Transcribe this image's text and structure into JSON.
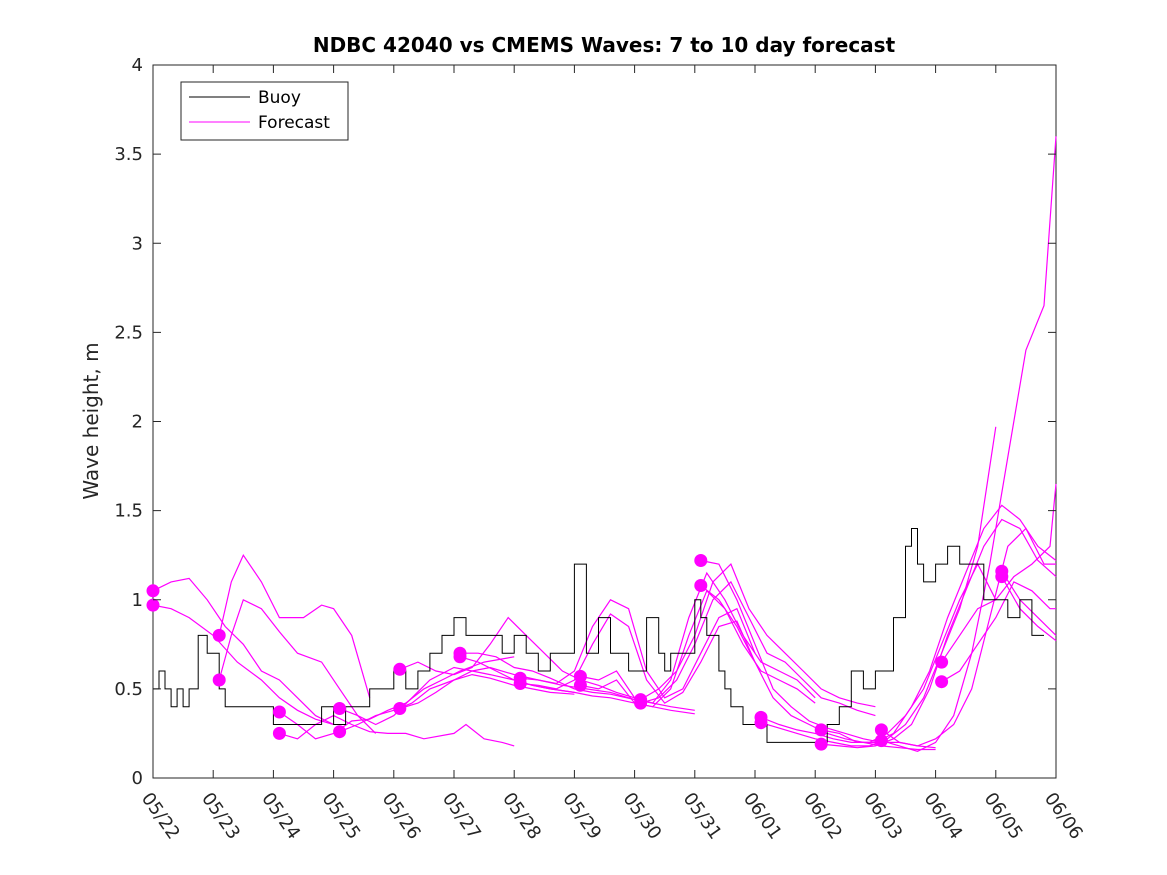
{
  "chart_data": {
    "type": "line",
    "title": "NDBC 42040 vs CMEMS Waves: 7 to 10 day forecast",
    "xlabel": "",
    "ylabel": "Wave height, m",
    "xlim": [
      "05/22",
      "06/06"
    ],
    "ylim": [
      0,
      4
    ],
    "y_ticks": [
      "0",
      "0.5",
      "1",
      "1.5",
      "2",
      "2.5",
      "3",
      "3.5",
      "4"
    ],
    "x_ticks": [
      "05/22",
      "05/23",
      "05/24",
      "05/25",
      "05/26",
      "05/27",
      "05/28",
      "05/29",
      "05/30",
      "05/31",
      "06/01",
      "06/02",
      "06/03",
      "06/04",
      "06/05",
      "06/06"
    ],
    "legend": {
      "position": "top-left",
      "entries": [
        "Buoy",
        "Forecast"
      ]
    },
    "colors": {
      "buoy": "#000000",
      "forecast": "#ff00ff"
    },
    "grid": false,
    "buoy": {
      "name": "Buoy",
      "x_days": [
        0,
        0.1,
        0.2,
        0.3,
        0.4,
        0.5,
        0.6,
        0.75,
        0.9,
        1.0,
        1.1,
        1.2,
        1.3,
        1.5,
        1.8,
        2.0,
        2.2,
        2.4,
        2.6,
        2.8,
        3.0,
        3.2,
        3.4,
        3.6,
        3.8,
        4.0,
        4.2,
        4.4,
        4.6,
        4.8,
        5.0,
        5.2,
        5.4,
        5.6,
        5.8,
        6.0,
        6.2,
        6.4,
        6.6,
        6.8,
        7.0,
        7.2,
        7.4,
        7.6,
        7.7,
        7.8,
        7.9,
        8.0,
        8.2,
        8.4,
        8.5,
        8.6,
        8.8,
        9.0,
        9.1,
        9.2,
        9.4,
        9.5,
        9.6,
        9.8,
        10.0,
        10.2,
        10.4,
        10.6,
        10.8,
        11.0,
        11.2,
        11.4,
        11.6,
        11.8,
        12.0,
        12.1,
        12.3,
        12.5,
        12.6,
        12.7,
        12.8,
        13.0,
        13.2,
        13.4,
        13.6,
        13.8,
        14.0,
        14.2,
        14.4,
        14.6,
        14.8
      ],
      "y": [
        0.5,
        0.6,
        0.5,
        0.4,
        0.5,
        0.4,
        0.5,
        0.8,
        0.7,
        0.7,
        0.5,
        0.4,
        0.4,
        0.4,
        0.4,
        0.3,
        0.3,
        0.3,
        0.3,
        0.4,
        0.3,
        0.4,
        0.4,
        0.5,
        0.5,
        0.6,
        0.5,
        0.6,
        0.7,
        0.8,
        0.9,
        0.8,
        0.8,
        0.8,
        0.7,
        0.8,
        0.7,
        0.6,
        0.7,
        0.7,
        1.2,
        0.7,
        0.9,
        0.7,
        0.7,
        0.7,
        0.6,
        0.6,
        0.9,
        0.7,
        0.6,
        0.7,
        0.7,
        1.0,
        0.9,
        0.8,
        0.6,
        0.5,
        0.4,
        0.3,
        0.3,
        0.2,
        0.2,
        0.2,
        0.2,
        0.2,
        0.3,
        0.4,
        0.6,
        0.5,
        0.6,
        0.6,
        0.9,
        1.3,
        1.4,
        1.2,
        1.1,
        1.2,
        1.3,
        1.2,
        1.2,
        1.0,
        1.0,
        0.9,
        1.0,
        0.8,
        0.8
      ]
    },
    "series": [
      {
        "name": "Forecast",
        "x_days": [
          0,
          0.3,
          0.6,
          0.9,
          1.2,
          1.5,
          1.8,
          2.1,
          2.4,
          2.7,
          3.0
        ],
        "y": [
          1.05,
          1.1,
          1.12,
          1.0,
          0.85,
          0.75,
          0.6,
          0.55,
          0.45,
          0.35,
          0.3
        ]
      },
      {
        "name": "Forecast",
        "x_days": [
          0,
          0.3,
          0.6,
          1.0,
          1.4,
          1.8,
          2.1,
          2.4,
          2.7,
          3.0
        ],
        "y": [
          0.97,
          0.95,
          0.9,
          0.8,
          0.65,
          0.55,
          0.45,
          0.38,
          0.33,
          0.3
        ]
      },
      {
        "name": "Forecast",
        "x_days": [
          1.1,
          1.3,
          1.5,
          1.8,
          2.1,
          2.5,
          2.8,
          3.0,
          3.3,
          3.6
        ],
        "y": [
          0.8,
          1.1,
          1.25,
          1.1,
          0.9,
          0.9,
          0.97,
          0.95,
          0.8,
          0.45
        ]
      },
      {
        "name": "Forecast",
        "x_days": [
          1.1,
          1.3,
          1.5,
          1.8,
          2.1,
          2.4,
          2.8,
          3.1,
          3.4,
          3.7
        ],
        "y": [
          0.55,
          0.8,
          1.0,
          0.95,
          0.82,
          0.7,
          0.65,
          0.5,
          0.35,
          0.25
        ]
      },
      {
        "name": "Forecast",
        "x_days": [
          2.1,
          2.4,
          2.7,
          3.0,
          3.3,
          3.6,
          3.9,
          4.2,
          4.5,
          4.8,
          5.1,
          5.5,
          6.0
        ],
        "y": [
          0.37,
          0.3,
          0.22,
          0.25,
          0.32,
          0.33,
          0.38,
          0.42,
          0.5,
          0.55,
          0.6,
          0.65,
          0.68
        ]
      },
      {
        "name": "Forecast",
        "x_days": [
          2.1,
          2.4,
          2.7,
          3.0,
          3.3,
          3.6,
          3.9,
          4.2,
          4.5,
          5.0,
          5.2,
          5.5,
          5.8,
          6.0
        ],
        "y": [
          0.25,
          0.22,
          0.3,
          0.35,
          0.3,
          0.26,
          0.25,
          0.25,
          0.22,
          0.25,
          0.3,
          0.22,
          0.2,
          0.18
        ]
      },
      {
        "name": "Forecast",
        "x_days": [
          3.1,
          3.4,
          3.7,
          4.0,
          4.3,
          4.6,
          5.0,
          5.3,
          5.6,
          6.0,
          6.3,
          6.6,
          7.0
        ],
        "y": [
          0.39,
          0.35,
          0.3,
          0.35,
          0.45,
          0.55,
          0.62,
          0.6,
          0.58,
          0.55,
          0.52,
          0.5,
          0.48
        ]
      },
      {
        "name": "Forecast",
        "x_days": [
          3.1,
          3.4,
          3.7,
          4.0,
          4.3,
          4.6,
          5.0,
          5.3,
          5.6,
          6.0,
          6.3,
          6.6,
          7.0
        ],
        "y": [
          0.26,
          0.3,
          0.35,
          0.38,
          0.42,
          0.5,
          0.55,
          0.58,
          0.56,
          0.52,
          0.5,
          0.48,
          0.47
        ]
      },
      {
        "name": "Forecast",
        "x_days": [
          4.1,
          4.4,
          4.7,
          5.0,
          5.3,
          5.6,
          5.9,
          6.2,
          6.5,
          6.8,
          7.1,
          7.4,
          7.7,
          8.0
        ],
        "y": [
          0.61,
          0.65,
          0.6,
          0.58,
          0.62,
          0.75,
          0.9,
          0.8,
          0.7,
          0.6,
          0.55,
          0.52,
          0.48,
          0.45
        ]
      },
      {
        "name": "Forecast",
        "x_days": [
          4.1,
          4.4,
          4.7,
          5.0,
          5.3,
          5.6,
          6.0,
          6.4,
          6.8,
          7.2,
          7.6,
          8.0
        ],
        "y": [
          0.39,
          0.42,
          0.48,
          0.55,
          0.6,
          0.62,
          0.58,
          0.55,
          0.52,
          0.5,
          0.48,
          0.44
        ]
      },
      {
        "name": "Forecast",
        "x_days": [
          5.1,
          5.4,
          5.7,
          6.0,
          6.3,
          6.6,
          7.0,
          7.3,
          7.6,
          8.0,
          8.3,
          8.6,
          9.0
        ],
        "y": [
          0.7,
          0.7,
          0.68,
          0.62,
          0.6,
          0.56,
          0.5,
          0.48,
          0.47,
          0.44,
          0.42,
          0.4,
          0.38
        ]
      },
      {
        "name": "Forecast",
        "x_days": [
          5.1,
          5.4,
          5.7,
          6.0,
          6.3,
          6.6,
          7.0,
          7.3,
          7.6,
          8.0,
          8.3,
          8.6,
          9.0
        ],
        "y": [
          0.68,
          0.65,
          0.6,
          0.55,
          0.52,
          0.5,
          0.48,
          0.46,
          0.45,
          0.42,
          0.4,
          0.38,
          0.36
        ]
      },
      {
        "name": "Forecast",
        "x_days": [
          6.1,
          6.4,
          6.7,
          7.0,
          7.3,
          7.6,
          7.9,
          8.2,
          8.5,
          8.8,
          9.1,
          9.4,
          9.7,
          10.0
        ],
        "y": [
          0.56,
          0.55,
          0.53,
          0.6,
          0.85,
          1.0,
          0.95,
          0.6,
          0.45,
          0.5,
          0.7,
          0.9,
          0.95,
          0.7
        ]
      },
      {
        "name": "Forecast",
        "x_days": [
          6.1,
          6.4,
          6.7,
          7.0,
          7.3,
          7.6,
          7.9,
          8.2,
          8.5,
          8.8,
          9.1,
          9.4,
          9.7,
          10.0
        ],
        "y": [
          0.53,
          0.52,
          0.5,
          0.55,
          0.75,
          0.92,
          0.85,
          0.55,
          0.42,
          0.48,
          0.65,
          0.85,
          0.88,
          0.65
        ]
      },
      {
        "name": "Forecast",
        "x_days": [
          7.1,
          7.4,
          7.7,
          8.0,
          8.3,
          8.6,
          8.9,
          9.2,
          9.5,
          9.8,
          10.1,
          10.4,
          10.7,
          11.0
        ],
        "y": [
          0.57,
          0.55,
          0.6,
          0.45,
          0.42,
          0.55,
          0.9,
          1.15,
          1.0,
          0.8,
          0.65,
          0.6,
          0.55,
          0.45
        ]
      },
      {
        "name": "Forecast",
        "x_days": [
          7.1,
          7.4,
          7.7,
          8.0,
          8.3,
          8.6,
          8.9,
          9.2,
          9.5,
          9.8,
          10.1,
          10.4,
          10.7,
          11.0
        ],
        "y": [
          0.52,
          0.5,
          0.55,
          0.42,
          0.4,
          0.5,
          0.8,
          1.05,
          0.95,
          0.75,
          0.6,
          0.55,
          0.5,
          0.42
        ]
      },
      {
        "name": "Forecast",
        "x_days": [
          8.1,
          8.4,
          8.7,
          9.0,
          9.3,
          9.6,
          9.9,
          10.2,
          10.5,
          10.8,
          11.1,
          11.4,
          11.7,
          12.0
        ],
        "y": [
          0.44,
          0.5,
          0.6,
          0.8,
          1.1,
          1.2,
          0.95,
          0.8,
          0.7,
          0.6,
          0.5,
          0.45,
          0.42,
          0.4
        ]
      },
      {
        "name": "Forecast",
        "x_days": [
          8.1,
          8.4,
          8.7,
          9.0,
          9.3,
          9.6,
          9.9,
          10.2,
          10.5,
          10.8,
          11.1,
          11.4,
          11.7,
          12.0
        ],
        "y": [
          0.42,
          0.45,
          0.55,
          0.75,
          1.0,
          1.1,
          0.9,
          0.7,
          0.65,
          0.55,
          0.45,
          0.42,
          0.38,
          0.35
        ]
      },
      {
        "name": "Forecast",
        "x_days": [
          9.1,
          9.4,
          9.7,
          10.0,
          10.3,
          10.6,
          10.9,
          11.2,
          11.5,
          11.8,
          12.1,
          12.4,
          12.7,
          13.0
        ],
        "y": [
          1.22,
          1.2,
          1.0,
          0.75,
          0.5,
          0.4,
          0.32,
          0.28,
          0.25,
          0.22,
          0.2,
          0.2,
          0.18,
          0.17
        ]
      },
      {
        "name": "Forecast",
        "x_days": [
          9.1,
          9.4,
          9.7,
          10.0,
          10.3,
          10.6,
          10.9,
          11.2,
          11.5,
          11.8,
          12.1,
          12.4,
          12.7,
          13.0
        ],
        "y": [
          1.08,
          1.0,
          0.85,
          0.65,
          0.45,
          0.35,
          0.3,
          0.25,
          0.22,
          0.2,
          0.18,
          0.17,
          0.16,
          0.16
        ]
      },
      {
        "name": "Forecast",
        "x_days": [
          10.1,
          10.4,
          10.7,
          11.0,
          11.3,
          11.6,
          11.9,
          12.2,
          12.5,
          12.8,
          13.1,
          13.4,
          13.7,
          14.0
        ],
        "y": [
          0.34,
          0.3,
          0.27,
          0.25,
          0.22,
          0.2,
          0.2,
          0.25,
          0.35,
          0.5,
          0.75,
          1.0,
          1.2,
          1.0
        ]
      },
      {
        "name": "Forecast",
        "x_days": [
          10.1,
          10.4,
          10.7,
          11.0,
          11.3,
          11.6,
          11.9,
          12.2,
          12.5,
          12.8,
          13.1,
          13.4,
          13.7,
          14.0
        ],
        "y": [
          0.31,
          0.28,
          0.25,
          0.22,
          0.2,
          0.18,
          0.18,
          0.22,
          0.3,
          0.45,
          0.7,
          0.95,
          1.3,
          1.97
        ]
      },
      {
        "name": "Forecast",
        "x_days": [
          11.1,
          11.4,
          11.7,
          12.0,
          12.3,
          12.6,
          12.9,
          13.2,
          13.5,
          13.8,
          14.1,
          14.4,
          14.7,
          15.0
        ],
        "y": [
          0.27,
          0.25,
          0.2,
          0.2,
          0.25,
          0.4,
          0.6,
          0.9,
          1.15,
          1.4,
          1.53,
          1.45,
          1.3,
          1.22
        ]
      },
      {
        "name": "Forecast",
        "x_days": [
          11.1,
          11.4,
          11.7,
          12.0,
          12.3,
          12.6,
          12.9,
          13.2,
          13.5,
          13.8,
          14.1,
          14.4,
          14.7,
          15.0
        ],
        "y": [
          0.19,
          0.18,
          0.17,
          0.18,
          0.22,
          0.3,
          0.5,
          0.8,
          1.05,
          1.3,
          1.45,
          1.4,
          1.22,
          1.13
        ]
      },
      {
        "name": "Forecast",
        "x_days": [
          12.1,
          12.4,
          12.7,
          13.0,
          13.3,
          13.6,
          13.9,
          14.2,
          14.5,
          14.8,
          15.0
        ],
        "y": [
          0.27,
          0.2,
          0.18,
          0.22,
          0.3,
          0.5,
          0.9,
          1.3,
          1.4,
          1.2,
          1.2
        ]
      },
      {
        "name": "Forecast",
        "x_days": [
          12.1,
          12.4,
          12.7,
          13.0,
          13.3,
          13.6,
          13.9,
          14.2,
          14.5,
          14.8,
          15.0
        ],
        "y": [
          0.21,
          0.18,
          0.15,
          0.2,
          0.35,
          0.7,
          1.2,
          1.8,
          2.4,
          2.65,
          3.6
        ]
      },
      {
        "name": "Forecast",
        "x_days": [
          13.1,
          13.4,
          13.7,
          14.0,
          14.3,
          14.6,
          14.9,
          15.0
        ],
        "y": [
          0.65,
          0.8,
          0.95,
          1.0,
          1.13,
          1.2,
          1.3,
          1.65
        ]
      },
      {
        "name": "Forecast",
        "x_days": [
          13.1,
          13.4,
          13.7,
          14.0,
          14.3,
          14.6,
          14.9,
          15.0
        ],
        "y": [
          0.54,
          0.6,
          0.75,
          0.9,
          1.1,
          1.05,
          0.95,
          0.95
        ]
      },
      {
        "name": "Forecast",
        "x_days": [
          14.1,
          14.4,
          14.7,
          15.0
        ],
        "y": [
          1.16,
          1.0,
          0.9,
          0.8
        ]
      },
      {
        "name": "Forecast",
        "x_days": [
          14.1,
          14.4,
          14.7,
          15.0
        ],
        "y": [
          1.13,
          0.95,
          0.85,
          0.77
        ]
      }
    ]
  }
}
